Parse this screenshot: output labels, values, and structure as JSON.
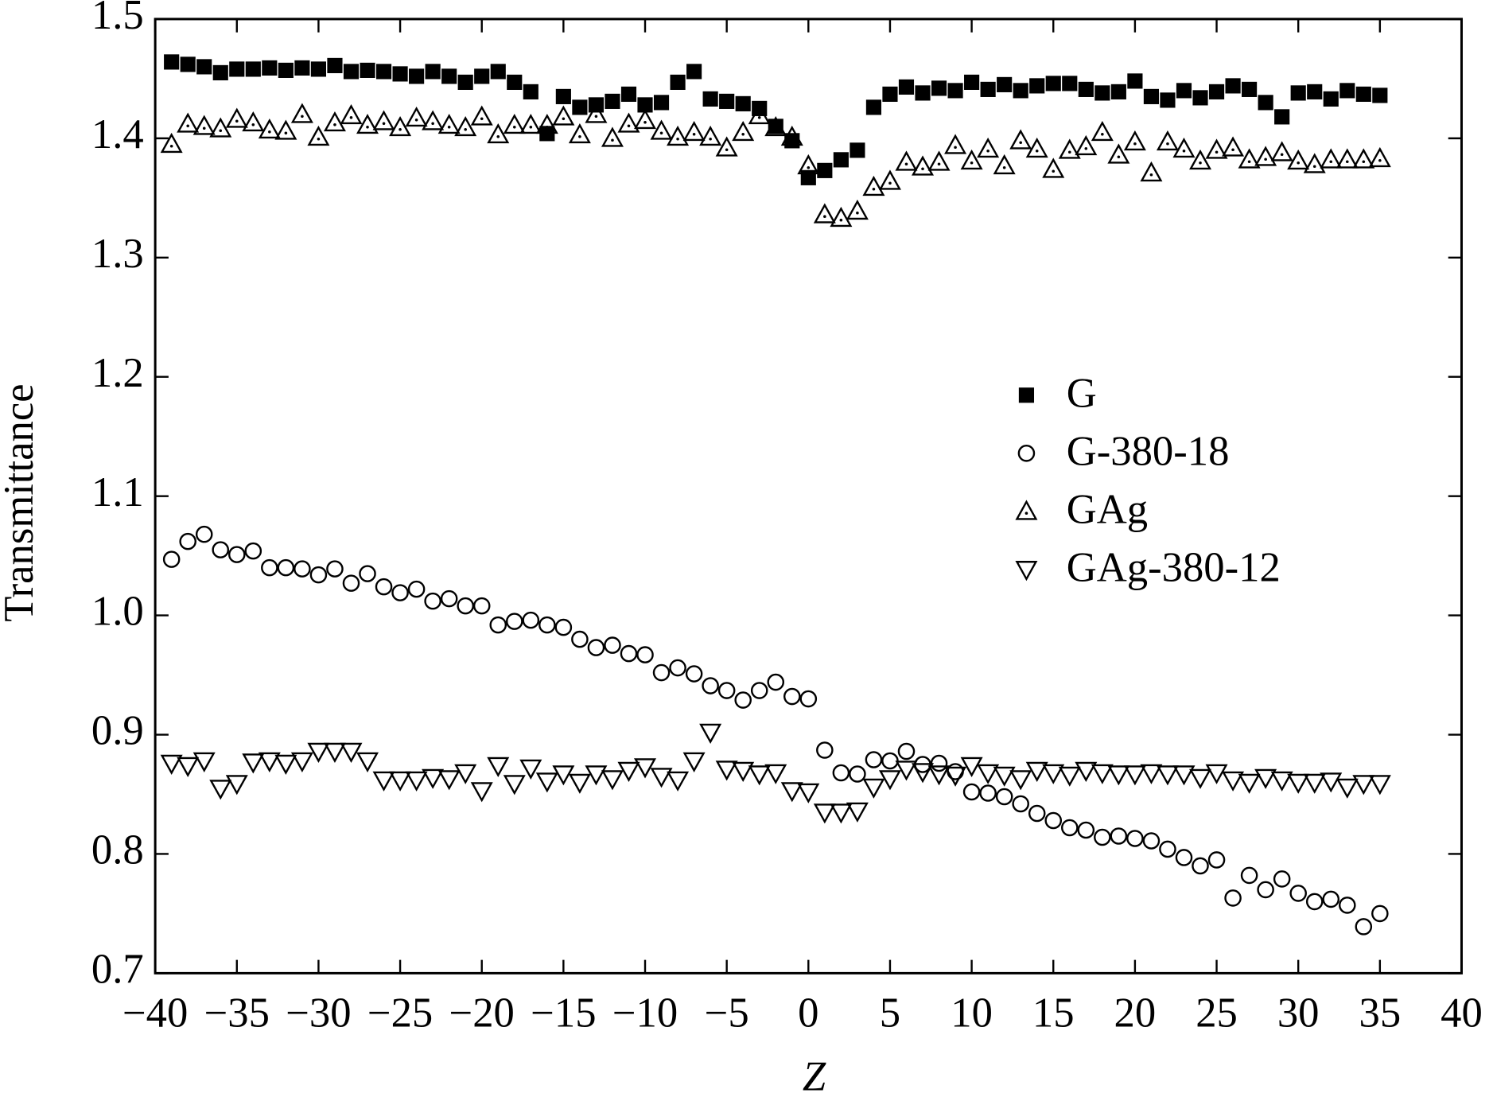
{
  "chart_data": {
    "type": "scatter",
    "x_label": "Z",
    "y_label": "Transmittance",
    "xlim": [
      -40,
      40
    ],
    "ylim": [
      0.7,
      1.5
    ],
    "xticks": [
      {
        "value": -40,
        "label": "−40"
      },
      {
        "value": -35,
        "label": "−35"
      },
      {
        "value": -30,
        "label": "−30"
      },
      {
        "value": -25,
        "label": "−25"
      },
      {
        "value": -20,
        "label": "−20"
      },
      {
        "value": -15,
        "label": "−15"
      },
      {
        "value": -10,
        "label": "−10"
      },
      {
        "value": -5,
        "label": "−5"
      },
      0,
      5,
      10,
      15,
      20,
      25,
      30,
      35,
      40
    ],
    "yticks": [
      0.7,
      0.8,
      0.9,
      {
        "value": 1.0,
        "label": "1.0"
      },
      1.1,
      1.2,
      1.3,
      1.4,
      1.5
    ],
    "legend": "center right",
    "x": [
      -39,
      -38,
      -37,
      -36,
      -35,
      -34,
      -33,
      -32,
      -31,
      -30,
      -29,
      -28,
      -27,
      -26,
      -25,
      -24,
      -23,
      -22,
      -21,
      -20,
      -19,
      -18,
      -17,
      -16,
      -15,
      -14,
      -13,
      -12,
      -11,
      -10,
      -9,
      -8,
      -7,
      -6,
      -5,
      -4,
      -3,
      -2,
      -1,
      0,
      1,
      2,
      3,
      4,
      5,
      6,
      7,
      8,
      9,
      10,
      11,
      12,
      13,
      14,
      15,
      16,
      17,
      18,
      19,
      20,
      21,
      22,
      23,
      24,
      25,
      26,
      27,
      28,
      29,
      30,
      31,
      32,
      33,
      34,
      35
    ],
    "series": [
      {
        "name": "G",
        "color": "#000000",
        "marker": "square",
        "values": [
          1.464,
          1.462,
          1.46,
          1.455,
          1.458,
          1.458,
          1.459,
          1.457,
          1.459,
          1.458,
          1.461,
          1.456,
          1.457,
          1.456,
          1.454,
          1.452,
          1.456,
          1.452,
          1.447,
          1.452,
          1.456,
          1.447,
          1.439,
          1.404,
          1.435,
          1.426,
          1.428,
          1.431,
          1.437,
          1.428,
          1.43,
          1.447,
          1.456,
          1.433,
          1.431,
          1.429,
          1.425,
          1.41,
          1.398,
          1.367,
          1.373,
          1.382,
          1.39,
          1.426,
          1.437,
          1.443,
          1.438,
          1.442,
          1.44,
          1.447,
          1.441,
          1.445,
          1.44,
          1.444,
          1.446,
          1.446,
          1.441,
          1.438,
          1.439,
          1.448,
          1.435,
          1.432,
          1.44,
          1.434,
          1.439,
          1.444,
          1.441,
          1.43,
          1.418,
          1.438,
          1.439,
          1.433,
          1.44,
          1.437,
          1.436
        ]
      },
      {
        "name": "G-380-18",
        "color": "#000000",
        "marker": "circle",
        "values": [
          1.047,
          1.062,
          1.068,
          1.055,
          1.051,
          1.054,
          1.04,
          1.04,
          1.039,
          1.034,
          1.039,
          1.027,
          1.035,
          1.024,
          1.019,
          1.022,
          1.012,
          1.014,
          1.008,
          1.008,
          0.992,
          0.995,
          0.996,
          0.992,
          0.99,
          0.98,
          0.973,
          0.975,
          0.968,
          0.967,
          0.952,
          0.956,
          0.951,
          0.941,
          0.937,
          0.929,
          0.937,
          0.944,
          0.932,
          0.93,
          0.887,
          0.868,
          0.867,
          0.879,
          0.878,
          0.886,
          0.875,
          0.876,
          0.869,
          0.852,
          0.851,
          0.848,
          0.842,
          0.834,
          0.828,
          0.822,
          0.82,
          0.814,
          0.815,
          0.813,
          0.811,
          0.804,
          0.797,
          0.79,
          0.795,
          0.763,
          0.782,
          0.77,
          0.779,
          0.767,
          0.76,
          0.762,
          0.757,
          0.739,
          0.75
        ]
      },
      {
        "name": "GAg",
        "color": "#000000",
        "marker": "triangle-up",
        "values": [
          1.395,
          1.412,
          1.41,
          1.408,
          1.416,
          1.413,
          1.407,
          1.406,
          1.42,
          1.401,
          1.413,
          1.419,
          1.411,
          1.414,
          1.409,
          1.417,
          1.414,
          1.411,
          1.409,
          1.418,
          1.403,
          1.411,
          1.411,
          1.411,
          1.418,
          1.403,
          1.42,
          1.4,
          1.412,
          1.415,
          1.406,
          1.401,
          1.405,
          1.401,
          1.392,
          1.405,
          1.419,
          1.409,
          1.401,
          1.377,
          1.336,
          1.333,
          1.339,
          1.359,
          1.364,
          1.38,
          1.376,
          1.38,
          1.394,
          1.381,
          1.391,
          1.377,
          1.398,
          1.391,
          1.374,
          1.39,
          1.393,
          1.405,
          1.386,
          1.397,
          1.371,
          1.397,
          1.391,
          1.381,
          1.39,
          1.392,
          1.382,
          1.384,
          1.388,
          1.381,
          1.378,
          1.382,
          1.382,
          1.382,
          1.383
        ]
      },
      {
        "name": "GAg-380-12",
        "color": "#000000",
        "marker": "triangle-down",
        "values": [
          0.876,
          0.874,
          0.878,
          0.855,
          0.859,
          0.877,
          0.878,
          0.876,
          0.878,
          0.886,
          0.886,
          0.886,
          0.878,
          0.862,
          0.862,
          0.862,
          0.864,
          0.863,
          0.868,
          0.853,
          0.874,
          0.859,
          0.872,
          0.861,
          0.867,
          0.86,
          0.867,
          0.863,
          0.87,
          0.873,
          0.865,
          0.862,
          0.878,
          0.902,
          0.871,
          0.87,
          0.867,
          0.868,
          0.853,
          0.852,
          0.835,
          0.835,
          0.836,
          0.856,
          0.863,
          0.871,
          0.869,
          0.867,
          0.866,
          0.874,
          0.868,
          0.866,
          0.863,
          0.87,
          0.868,
          0.866,
          0.87,
          0.868,
          0.867,
          0.867,
          0.868,
          0.867,
          0.867,
          0.864,
          0.868,
          0.862,
          0.86,
          0.864,
          0.862,
          0.86,
          0.86,
          0.861,
          0.856,
          0.859,
          0.859
        ]
      }
    ]
  }
}
